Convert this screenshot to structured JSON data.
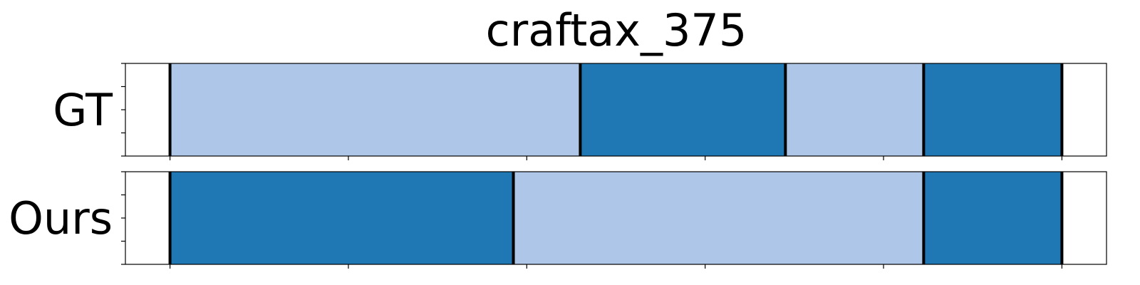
{
  "chart_data": {
    "type": "segmentation-timeline",
    "title": "craftax_375",
    "x_domain": [
      -0.5,
      10.5
    ],
    "segment_boundaries_shown": true,
    "colors": {
      "light": "#aec7e8",
      "dark": "#1f77b4"
    },
    "rows": [
      {
        "label": "GT",
        "segments": [
          {
            "start": 0,
            "end": 4.6,
            "class": "light"
          },
          {
            "start": 4.6,
            "end": 6.9,
            "class": "dark"
          },
          {
            "start": 6.9,
            "end": 8.45,
            "class": "light"
          },
          {
            "start": 8.45,
            "end": 10,
            "class": "dark"
          }
        ]
      },
      {
        "label": "Ours",
        "segments": [
          {
            "start": 0,
            "end": 3.85,
            "class": "dark"
          },
          {
            "start": 3.85,
            "end": 8.45,
            "class": "light"
          },
          {
            "start": 8.45,
            "end": 10,
            "class": "dark"
          }
        ]
      }
    ],
    "x_ticks": [
      0,
      2,
      4,
      6,
      8,
      10
    ],
    "y_ticks_per_row": 5,
    "tick_labels_shown": false
  }
}
